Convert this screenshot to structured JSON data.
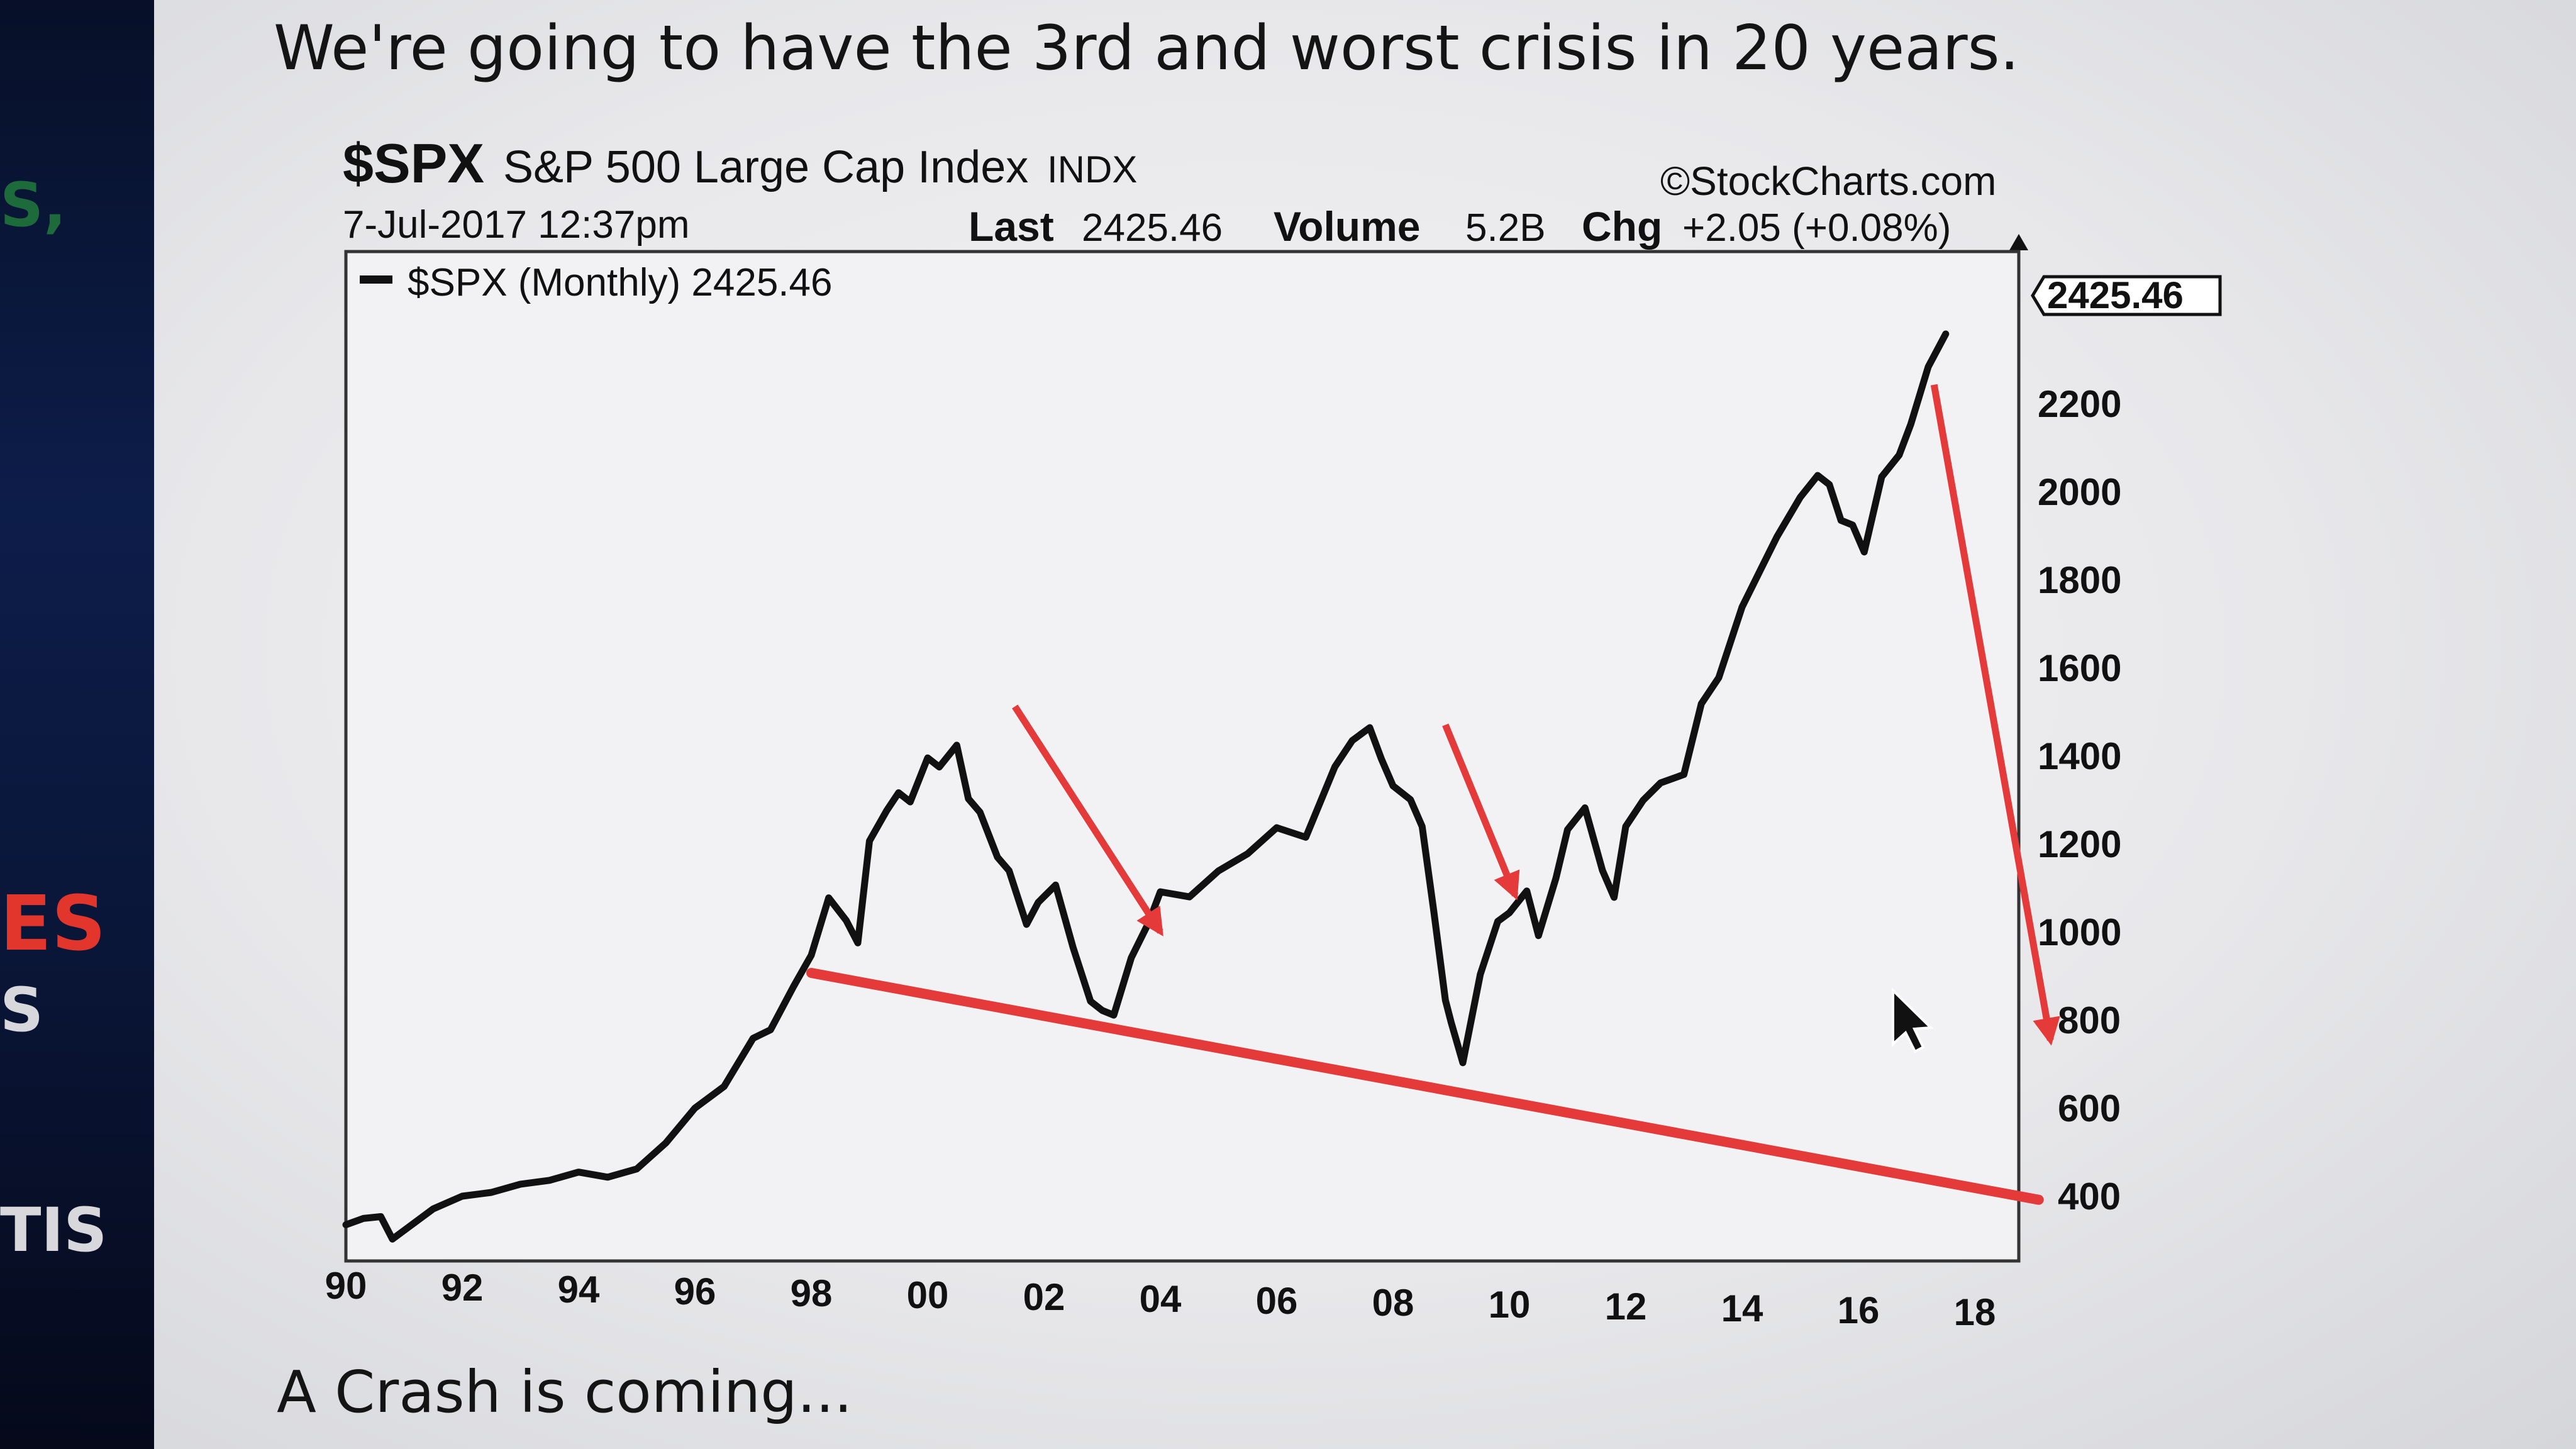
{
  "strip": {
    "s": "S,",
    "es": "ES",
    "s2": "S",
    "tis": "TIS"
  },
  "heading": "We're going to have the 3rd and worst crisis in 20 years.",
  "footer": "A Crash is coming...",
  "colors": {
    "line": "#111111",
    "annotation": "#e53a3a",
    "background": "#e8e8eb"
  },
  "chart_data": {
    "type": "line",
    "symbol": "$SPX",
    "name": "S&P 500 Large Cap Index",
    "exchange": "INDX",
    "source": "©StockCharts.com",
    "datetime": "7-Jul-2017 12:37pm",
    "last_label": "Last",
    "last": "2425.46",
    "volume_label": "Volume",
    "volume": "5.2B",
    "chg_label": "Chg",
    "chg": "+2.05 (+0.08%)",
    "legend": "$SPX (Monthly) 2425.46",
    "current_value": "2425.46",
    "xlim": [
      1990,
      2018.2
    ],
    "ylim": [
      280,
      2420
    ],
    "x_ticks": [
      {
        "v": 1990,
        "label": "90"
      },
      {
        "v": 1992,
        "label": "92"
      },
      {
        "v": 1994,
        "label": "94"
      },
      {
        "v": 1996,
        "label": "96"
      },
      {
        "v": 1998,
        "label": "98"
      },
      {
        "v": 2000,
        "label": "00"
      },
      {
        "v": 2002,
        "label": "02"
      },
      {
        "v": 2004,
        "label": "04"
      },
      {
        "v": 2006,
        "label": "06"
      },
      {
        "v": 2008,
        "label": "08"
      },
      {
        "v": 2010,
        "label": "10"
      },
      {
        "v": 2012,
        "label": "12"
      },
      {
        "v": 2014,
        "label": "14"
      },
      {
        "v": 2016,
        "label": "16"
      },
      {
        "v": 2018,
        "label": "18"
      }
    ],
    "y_ticks": [
      {
        "v": 400,
        "label": "400"
      },
      {
        "v": 600,
        "label": "600"
      },
      {
        "v": 800,
        "label": "800"
      },
      {
        "v": 1000,
        "label": "1000"
      },
      {
        "v": 1200,
        "label": "1200"
      },
      {
        "v": 1400,
        "label": "1400"
      },
      {
        "v": 1600,
        "label": "1600"
      },
      {
        "v": 1800,
        "label": "1800"
      },
      {
        "v": 2000,
        "label": "2000"
      },
      {
        "v": 2200,
        "label": "2200"
      }
    ],
    "series": [
      {
        "x": [
          1990.0,
          1990.3,
          1990.6,
          1990.8,
          1991.0,
          1991.5,
          1992.0,
          1992.5,
          1993.0,
          1993.5,
          1994.0,
          1994.5,
          1995.0,
          1995.5,
          1996.0,
          1996.5,
          1997.0,
          1997.3,
          1997.7,
          1998.0,
          1998.3,
          1998.6,
          1998.8,
          1999.0,
          1999.3,
          1999.5,
          1999.7,
          2000.0,
          2000.2,
          2000.5,
          2000.7,
          2000.9,
          2001.2,
          2001.4,
          2001.7,
          2001.9,
          2002.2,
          2002.5,
          2002.8,
          2003.0,
          2003.2,
          2003.5,
          2003.8,
          2004.0,
          2004.5,
          2005.0,
          2005.5,
          2006.0,
          2006.5,
          2007.0,
          2007.3,
          2007.6,
          2007.8,
          2008.0,
          2008.3,
          2008.5,
          2008.7,
          2008.9,
          2009.0,
          2009.2,
          2009.5,
          2009.8,
          2010.0,
          2010.3,
          2010.5,
          2010.8,
          2011.0,
          2011.3,
          2011.6,
          2011.8,
          2012.0,
          2012.3,
          2012.6,
          2013.0,
          2013.3,
          2013.6,
          2014.0,
          2014.3,
          2014.6,
          2015.0,
          2015.3,
          2015.5,
          2015.7,
          2015.9,
          2016.1,
          2016.4,
          2016.7,
          2016.9,
          2017.2,
          2017.5
        ],
        "y": [
          340,
          355,
          360,
          310,
          330,
          380,
          410,
          420,
          440,
          450,
          470,
          460,
          480,
          540,
          620,
          670,
          780,
          800,
          900,
          970,
          1100,
          1050,
          1000,
          1230,
          1300,
          1340,
          1320,
          1420,
          1400,
          1450,
          1330,
          1300,
          1200,
          1170,
          1050,
          1100,
          1140,
          1000,
          880,
          860,
          850,
          980,
          1060,
          1130,
          1120,
          1180,
          1220,
          1280,
          1260,
          1420,
          1480,
          1510,
          1440,
          1380,
          1350,
          1290,
          1100,
          900,
          850,
          760,
          960,
          1080,
          1100,
          1150,
          1050,
          1180,
          1290,
          1340,
          1200,
          1140,
          1300,
          1360,
          1400,
          1420,
          1580,
          1640,
          1800,
          1880,
          1960,
          2050,
          2100,
          2080,
          2000,
          1990,
          1930,
          2100,
          2150,
          2220,
          2350,
          2425
        ]
      }
    ],
    "annotations": {
      "support_line": {
        "x": [
          1998,
          2019.1
        ],
        "y": [
          930,
          480
        ]
      },
      "arrows": [
        {
          "x": [
            2001.5,
            2004.0
          ],
          "y": [
            1540,
            1040
          ]
        },
        {
          "x": [
            2008.9,
            2010.1
          ],
          "y": [
            1520,
            1140
          ]
        },
        {
          "x": [
            2017.3,
            2019.3
          ],
          "y": [
            2310,
            840
          ]
        }
      ]
    }
  }
}
